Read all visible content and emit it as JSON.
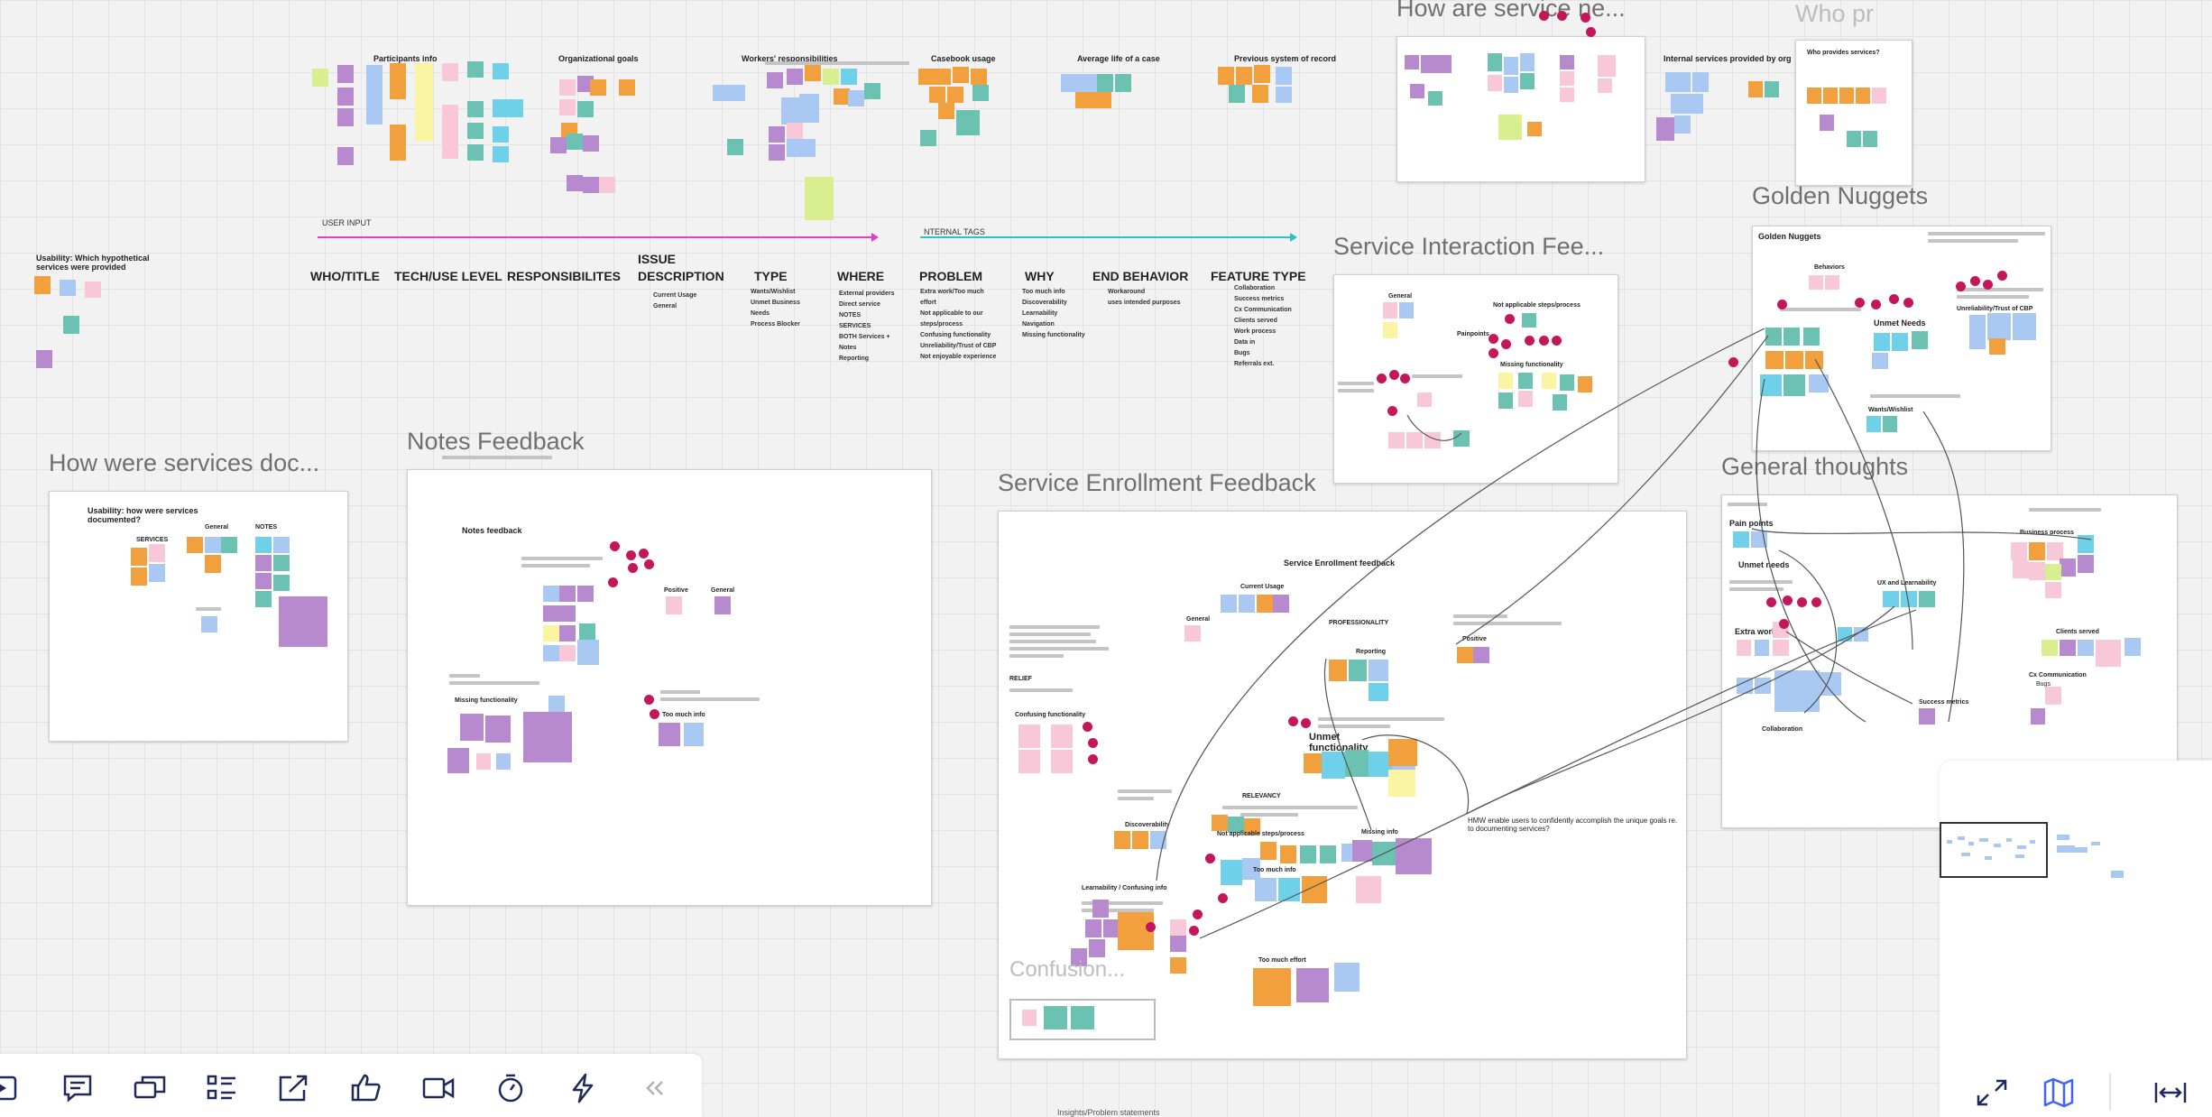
{
  "colors": {
    "orange": "#f2a03d",
    "blue": "#a9c8f2",
    "pink": "#f8c8d8",
    "purple": "#b78ad0",
    "teal": "#6cc2b2",
    "yellow": "#fbf5a3",
    "lime": "#d9ef8f",
    "cyan": "#6fd0ea",
    "dot": "#c2185b",
    "user_input_line": "#e040c8",
    "internal_tags_line": "#30c0c0"
  },
  "top_sections": {
    "participants": "Participants info",
    "org_goals": "Organizational goals",
    "workers": "Workers' responsibilities",
    "casebook": "Casebook usage",
    "avg_life": "Average life of a case",
    "prev_system": "Previous system of record",
    "internal_services": "Internal services provided by org"
  },
  "tags": {
    "user_input": "USER INPUT",
    "internal_tags": "NTERNAL TAGS"
  },
  "usability_note": "Usability: Which hypothetical services were provided",
  "columns": {
    "who": "WHO/TITLE",
    "tech": "TECH/USE LEVEL",
    "resp": "RESPONSIBILITES",
    "issue": "ISSUE DESCRIPTION",
    "type": "TYPE",
    "where": "WHERE",
    "problem": "PROBLEM",
    "why": "WHY",
    "end_behavior": "END BEHAVIOR",
    "feature_type": "FEATURE TYPE"
  },
  "column_items": {
    "issue": [
      "Current Usage",
      "General"
    ],
    "type": [
      "Wants/Wishlist",
      "Unmet Business Needs",
      "Process Blocker"
    ],
    "where": [
      "External providers",
      "Direct service",
      "NOTES",
      "SERVICES",
      "BOTH Services + Notes",
      "Reporting"
    ],
    "problem": [
      "Extra work/Too much effort",
      "Not applicable to our steps/process",
      "Confusing functionality",
      "Unreliability/Trust of CBP",
      "Not enjoyable experience"
    ],
    "why": [
      "Too much info",
      "Discoverability",
      "Learnability",
      "Navigation",
      "Missing functionality"
    ],
    "end_behavior": [
      "Workaround",
      "uses intended purposes"
    ],
    "feature_type": [
      "Collaboration",
      "Success metrics",
      "Cx Communication",
      "Clients served",
      "Work process",
      "Data in",
      "Bugs",
      "Referrals ext."
    ]
  },
  "frames": {
    "how_services_ne": "How are service ne...",
    "who_pr": "Who pr",
    "who_provides": "Who provides services?",
    "golden_nuggets": "Golden Nuggets",
    "service_interaction": "Service Interaction Fee...",
    "how_documented": "How were services doc...",
    "notes_feedback": "Notes Feedback",
    "service_enrollment": "Service Enrollment Feedback",
    "general_thoughts": "General thoughts",
    "confusion": "Confusion..."
  },
  "frame_labels": {
    "golden_nuggets_inner": "Golden Nuggets",
    "behaviors": "Behaviors",
    "unmet_needs": "Unmet Needs",
    "unreliability": "Unreliability/Trust of CBP",
    "wants_wishlist": "Wants/Wishlist",
    "si_general": "General",
    "si_not_applicable": "Not applicable steps/process",
    "si_painpoints": "Painpoints",
    "si_missing": "Missing functionality",
    "doc_usability": "Usability: how were services documented?",
    "doc_services": "SERVICES",
    "doc_general": "General",
    "doc_notes": "NOTES",
    "notes_inner": "Notes feedback",
    "notes_positive": "Positive",
    "notes_general": "General",
    "notes_missing": "Missing functionality",
    "notes_too_much": "Too much info",
    "se_inner": "Service Enrollment feedback",
    "se_current_usage": "Current Usage",
    "se_general": "General",
    "se_professionality": "PROFESSIONALITY",
    "se_reporting": "Reporting",
    "se_positive": "Positive",
    "se_relief": "RELIEF",
    "se_confusing": "Confusing functionality",
    "se_unmet": "Unmet functionality",
    "se_relevancy": "RELEVANCY",
    "se_discoverability": "Discoverability",
    "se_not_applicable": "Not applicable steps/process",
    "se_missing_info": "Missing info",
    "se_too_much_info": "Too much info",
    "se_learnability": "Learnability / Confusing info",
    "se_too_much_effort": "Too much effort",
    "hmw": "HMW enable users to confidently accomplish the unique goals re. to documenting services?",
    "gt_pain_points": "Pain points",
    "gt_unmet_needs": "Unmet needs",
    "gt_extra_work": "Extra work",
    "gt_ux": "UX and Learnability",
    "gt_business": "Business process",
    "gt_clients": "Clients served",
    "gt_cx": "Cx Communication",
    "gt_bugs": "Bugs",
    "gt_success": "Success metrics",
    "gt_collaboration": "Collaboration"
  },
  "bottom_caption": "Insights/Problem statements",
  "toolbar": {
    "buttons": [
      "frame-icon",
      "comment-icon",
      "cards-icon",
      "list-icon",
      "share-icon",
      "thumbs-up-icon",
      "video-icon",
      "timer-icon",
      "lightning-icon",
      "collapse-icon"
    ]
  },
  "minimap_controls": [
    "fullscreen-icon",
    "map-icon",
    "fit-width-icon"
  ]
}
